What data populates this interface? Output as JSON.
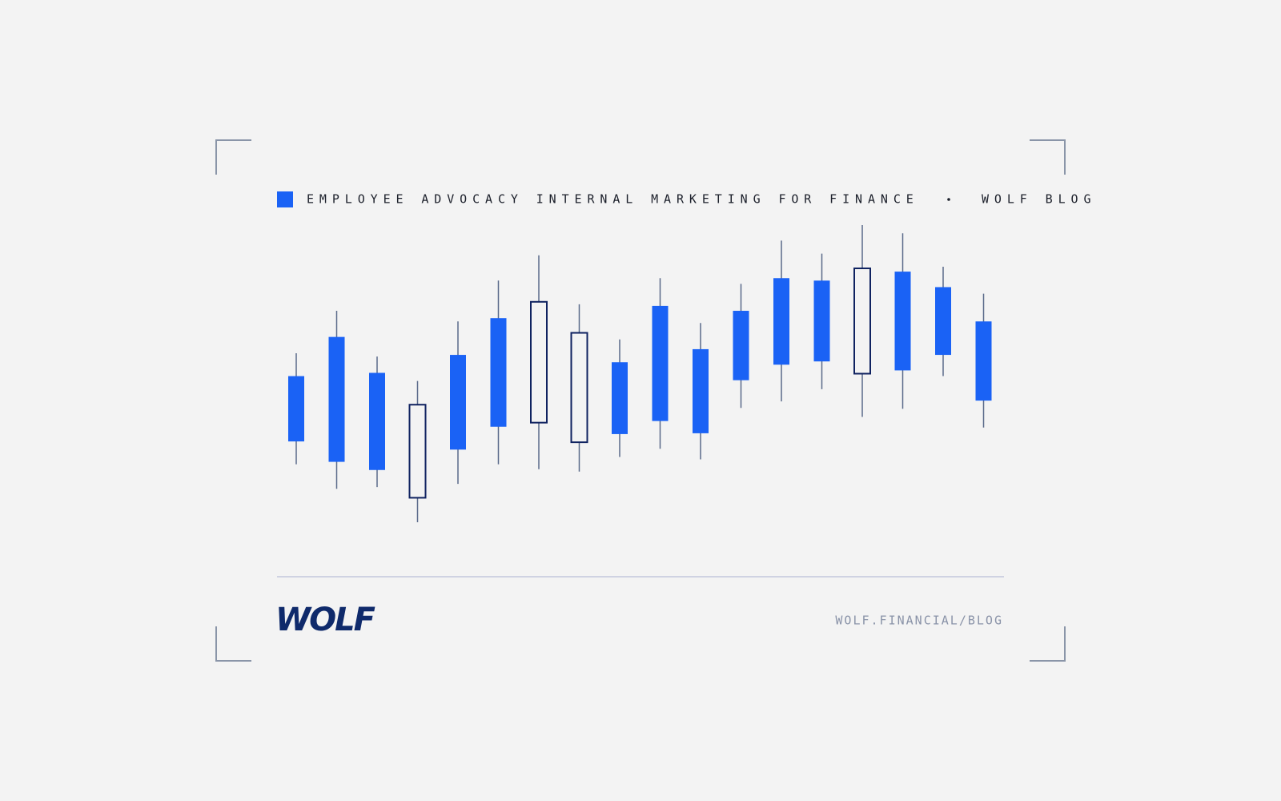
{
  "chart_data": {
    "type": "candlestick",
    "title": "EMPLOYEE ADVOCACY INTERNAL MARKETING FOR FINANCE",
    "subtitle": "WOLF BLOG",
    "legend_color": "#1a62f5",
    "down_color": "#1a62f5",
    "up_color": "#0f2260",
    "wick_color": "#5a6a8a",
    "open": [
      240,
      288,
      244,
      91,
      266,
      311,
      183,
      159,
      257,
      326,
      273,
      320,
      360,
      357,
      243,
      368,
      349,
      307
    ],
    "high": [
      268,
      320,
      264,
      234,
      307,
      357,
      388,
      328,
      285,
      360,
      305,
      353,
      406,
      390,
      425,
      415,
      374,
      341
    ],
    "low": [
      132,
      102,
      104,
      61,
      108,
      132,
      126,
      123,
      141,
      151,
      138,
      201,
      209,
      224,
      190,
      200,
      240,
      177
    ],
    "close": [
      160,
      135,
      125,
      205,
      150,
      178,
      331,
      293,
      169,
      185,
      170,
      235,
      254,
      258,
      372,
      247,
      266,
      210
    ]
  },
  "footer": {
    "logo": "WOLF",
    "url": "WOLF.FINANCIAL/BLOG"
  }
}
